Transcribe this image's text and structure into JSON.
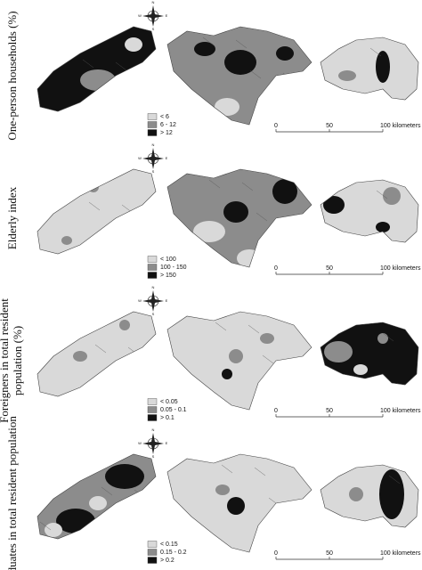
{
  "panels": [
    {
      "label": "One-person households (%)",
      "legend": [
        "< 6",
        "6 - 12",
        "> 12"
      ]
    },
    {
      "label": "Elderly index",
      "legend": [
        "< 100",
        "100 - 150",
        "> 150"
      ]
    },
    {
      "label": "Foreigners in total resident population (%)",
      "legend": [
        "< 0.05",
        "0.05 - 0.1",
        "> 0.1"
      ]
    },
    {
      "label": "Graduates in total resident population",
      "legend": [
        "< 0.15",
        "0.15 - 0.2",
        "> 0.2"
      ]
    }
  ],
  "scale": [
    "0",
    "50",
    "100 kilometers"
  ],
  "compass": [
    "N",
    "E",
    "S",
    "W"
  ]
}
